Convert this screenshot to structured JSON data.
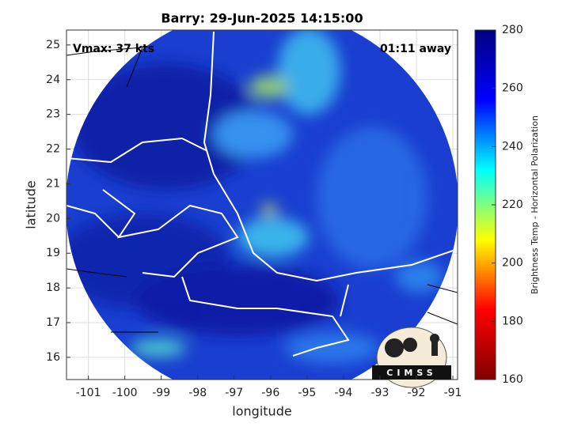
{
  "chart_data": {
    "type": "map",
    "title": "Barry: 29-Jun-2025 14:15:00",
    "xlabel": "longitude",
    "ylabel": "latitude",
    "xlim": [
      -101.6,
      -90.87
    ],
    "ylim": [
      15.36,
      25.43
    ],
    "xticks": [
      -101,
      -100,
      -99,
      -98,
      -97,
      -96,
      -95,
      -94,
      -93,
      -92,
      -91
    ],
    "yticks": [
      16,
      17,
      18,
      19,
      20,
      21,
      22,
      23,
      24,
      25
    ],
    "grid": true,
    "annotations": [
      "Vmax: 37 kts",
      "01:11 away"
    ],
    "logo": "CIMSS",
    "colorbar": {
      "label": "Brightness Temp - Horizontal Polarization",
      "lim": [
        160,
        280
      ],
      "ticks": [
        160,
        180,
        200,
        220,
        240,
        260,
        280
      ],
      "colormap": [
        "#800000",
        "#ff0000",
        "#ffff00",
        "#00ffff",
        "#0000ff",
        "#000080"
      ]
    }
  }
}
